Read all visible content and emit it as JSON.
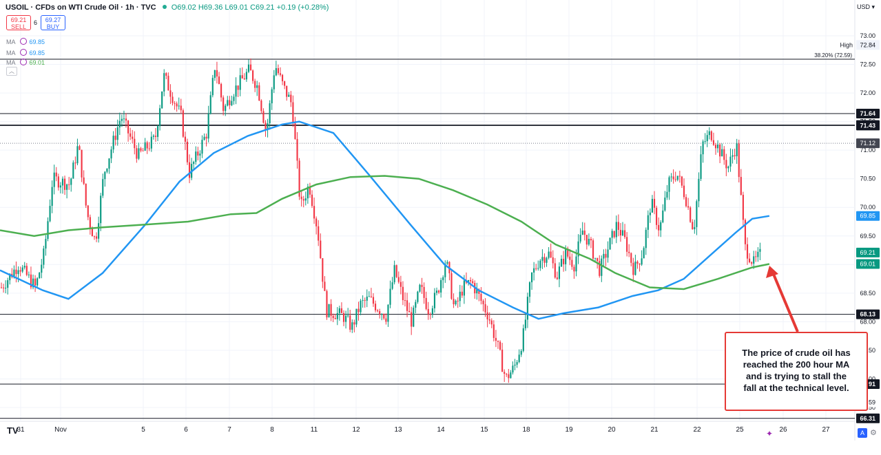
{
  "header": {
    "symbol": "USOIL · CFDs on WTI Crude Oil · 1h · TVC",
    "ohlc": "O69.02 H69.36 L69.01 C69.21 +0.19 (+0.28%)",
    "sell_price": "69.21",
    "sell_label": "SELL",
    "spread": "6",
    "buy_price": "69.27",
    "buy_label": "BUY",
    "ma1_label": "MA",
    "ma1_value": "69.85",
    "ma2_label": "MA",
    "ma2_value": "69.01",
    "collapse_icon": "chevron-up-icon",
    "currency": "USD"
  },
  "annotation": {
    "lines": [
      "The price of crude oil has",
      "reached the 200 hour MA",
      "and is trying to stall the",
      "fall at the technical level."
    ]
  },
  "footer": {
    "logo": "TV",
    "auto_label": "A",
    "settings_icon": "gear-icon",
    "sparkle_icon": "sparkle-icon"
  },
  "colors": {
    "up": "#089981",
    "down": "#f23645",
    "ma100": "#2196f3",
    "ma200": "#4caf50",
    "annotation": "#e53935"
  },
  "chart_data": {
    "type": "candlestick",
    "ylim": [
      66.2,
      73.3
    ],
    "y_ticks": [
      "73.00",
      "72.50",
      "72.00",
      "71.50",
      "71.00",
      "70.50",
      "70.00",
      "69.50",
      "69.00",
      "68.50",
      "68.00",
      "67.50",
      "67.00",
      "66.50"
    ],
    "x_tick_labels": [
      "31",
      "Nov",
      "5",
      "6",
      "7",
      "8",
      "11",
      "12",
      "13",
      "14",
      "15",
      "18",
      "19",
      "20",
      "21",
      "22",
      "25",
      "26",
      "27"
    ],
    "high_label": {
      "text": "High",
      "value": "72.84"
    },
    "fib_label": {
      "text": "38.20% (72.59)",
      "value": 72.59
    },
    "horizontal_levels": [
      {
        "value": 71.64,
        "label": "71.64",
        "style": "solid",
        "color": "#131722"
      },
      {
        "value": 71.44,
        "label": "71.44",
        "style": "solid",
        "color": "#131722"
      },
      {
        "value": 71.43,
        "label": "71.43",
        "style": "solid",
        "color": "#131722"
      },
      {
        "value": 68.13,
        "label": "68.13",
        "style": "solid",
        "color": "#131722"
      },
      {
        "value": 66.91,
        "label": "91",
        "style": "solid",
        "color": "#131722"
      },
      {
        "value": 66.31,
        "label": "66.31",
        "style": "solid",
        "color": "#131722"
      },
      {
        "value": 72.59,
        "label": "",
        "style": "solid",
        "color": "#131722"
      }
    ],
    "price_badges": [
      {
        "value": 71.12,
        "label": "71.12",
        "color": "#434651"
      },
      {
        "value": 69.85,
        "label": "69.85",
        "color": "#2196f3"
      },
      {
        "value": 69.21,
        "label": "69.21",
        "color": "#089981"
      },
      {
        "value": 69.01,
        "label": "69.01",
        "color": "#089981"
      },
      {
        "value": 66.59,
        "label": "59",
        "color": "#ffffff"
      }
    ],
    "dotted_level": 71.12,
    "series": [
      {
        "name": "MA",
        "value": "69.85",
        "color": "#2196f3",
        "points": [
          [
            0,
            68.9
          ],
          [
            0.05,
            68.55
          ],
          [
            0.08,
            68.4
          ],
          [
            0.12,
            68.85
          ],
          [
            0.17,
            69.7
          ],
          [
            0.21,
            70.45
          ],
          [
            0.25,
            70.95
          ],
          [
            0.29,
            71.25
          ],
          [
            0.33,
            71.45
          ],
          [
            0.35,
            71.5
          ],
          [
            0.39,
            71.3
          ],
          [
            0.43,
            70.6
          ],
          [
            0.48,
            69.7
          ],
          [
            0.52,
            69.0
          ],
          [
            0.56,
            68.55
          ],
          [
            0.6,
            68.25
          ],
          [
            0.63,
            68.05
          ],
          [
            0.66,
            68.15
          ],
          [
            0.7,
            68.25
          ],
          [
            0.74,
            68.45
          ],
          [
            0.77,
            68.55
          ],
          [
            0.8,
            68.75
          ],
          [
            0.83,
            69.15
          ],
          [
            0.86,
            69.55
          ],
          [
            0.88,
            69.8
          ],
          [
            0.9,
            69.85
          ]
        ]
      },
      {
        "name": "MA",
        "value": "69.01",
        "color": "#4caf50",
        "points": [
          [
            0,
            69.6
          ],
          [
            0.04,
            69.5
          ],
          [
            0.08,
            69.6
          ],
          [
            0.12,
            69.65
          ],
          [
            0.17,
            69.7
          ],
          [
            0.22,
            69.75
          ],
          [
            0.27,
            69.88
          ],
          [
            0.3,
            69.9
          ],
          [
            0.33,
            70.15
          ],
          [
            0.37,
            70.4
          ],
          [
            0.41,
            70.53
          ],
          [
            0.45,
            70.55
          ],
          [
            0.49,
            70.5
          ],
          [
            0.53,
            70.3
          ],
          [
            0.57,
            70.05
          ],
          [
            0.61,
            69.75
          ],
          [
            0.65,
            69.35
          ],
          [
            0.69,
            69.1
          ],
          [
            0.72,
            68.85
          ],
          [
            0.76,
            68.6
          ],
          [
            0.8,
            68.57
          ],
          [
            0.84,
            68.75
          ],
          [
            0.88,
            68.95
          ],
          [
            0.9,
            69.01
          ]
        ]
      }
    ],
    "candles_keyframes": [
      [
        0,
        68.6
      ],
      [
        0.02,
        69.0
      ],
      [
        0.04,
        68.6
      ],
      [
        0.05,
        69.2
      ],
      [
        0.06,
        70.5
      ],
      [
        0.08,
        70.4
      ],
      [
        0.09,
        71.1
      ],
      [
        0.1,
        69.9
      ],
      [
        0.11,
        69.4
      ],
      [
        0.12,
        70.6
      ],
      [
        0.14,
        71.6
      ],
      [
        0.16,
        70.9
      ],
      [
        0.18,
        71.2
      ],
      [
        0.19,
        72.3
      ],
      [
        0.21,
        71.6
      ],
      [
        0.22,
        70.6
      ],
      [
        0.24,
        71.3
      ],
      [
        0.25,
        72.5
      ],
      [
        0.26,
        71.7
      ],
      [
        0.27,
        72.0
      ],
      [
        0.29,
        72.4
      ],
      [
        0.3,
        72.1
      ],
      [
        0.31,
        71.3
      ],
      [
        0.32,
        72.5
      ],
      [
        0.33,
        72.1
      ],
      [
        0.34,
        71.8
      ],
      [
        0.35,
        70.0
      ],
      [
        0.36,
        70.4
      ],
      [
        0.37,
        69.6
      ],
      [
        0.38,
        68.2
      ],
      [
        0.4,
        68.1
      ],
      [
        0.41,
        67.9
      ],
      [
        0.42,
        68.3
      ],
      [
        0.43,
        68.4
      ],
      [
        0.45,
        68.1
      ],
      [
        0.46,
        68.9
      ],
      [
        0.47,
        68.4
      ],
      [
        0.48,
        68.0
      ],
      [
        0.49,
        68.6
      ],
      [
        0.5,
        68.2
      ],
      [
        0.51,
        68.5
      ],
      [
        0.52,
        69.1
      ],
      [
        0.53,
        68.2
      ],
      [
        0.54,
        68.6
      ],
      [
        0.55,
        68.7
      ],
      [
        0.56,
        68.4
      ],
      [
        0.57,
        68.1
      ],
      [
        0.58,
        67.6
      ],
      [
        0.59,
        67.0
      ],
      [
        0.6,
        67.2
      ],
      [
        0.61,
        67.7
      ],
      [
        0.62,
        68.8
      ],
      [
        0.63,
        69.1
      ],
      [
        0.64,
        69.2
      ],
      [
        0.65,
        68.8
      ],
      [
        0.66,
        69.2
      ],
      [
        0.67,
        69.0
      ],
      [
        0.68,
        69.6
      ],
      [
        0.69,
        69.3
      ],
      [
        0.7,
        68.9
      ],
      [
        0.71,
        69.3
      ],
      [
        0.72,
        69.7
      ],
      [
        0.73,
        69.4
      ],
      [
        0.74,
        68.9
      ],
      [
        0.75,
        69.2
      ],
      [
        0.76,
        70.1
      ],
      [
        0.77,
        69.6
      ],
      [
        0.78,
        70.4
      ],
      [
        0.79,
        70.6
      ],
      [
        0.8,
        70.2
      ],
      [
        0.81,
        69.6
      ],
      [
        0.82,
        71.1
      ],
      [
        0.83,
        71.3
      ],
      [
        0.84,
        71.0
      ],
      [
        0.85,
        70.7
      ],
      [
        0.86,
        71.1
      ],
      [
        0.87,
        69.3
      ],
      [
        0.88,
        69.02
      ],
      [
        0.89,
        69.21
      ]
    ]
  }
}
